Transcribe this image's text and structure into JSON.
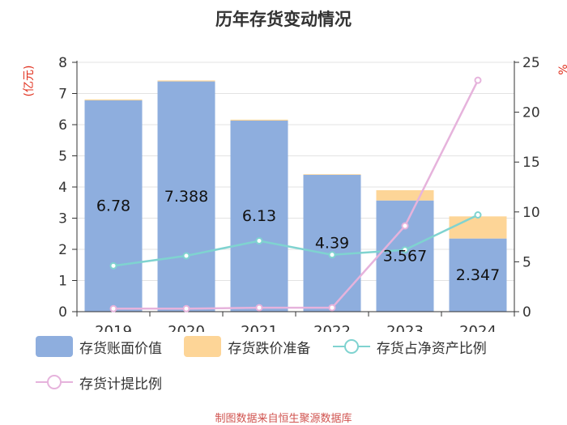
{
  "chart_data": {
    "type": "bar",
    "title": "历年存货变动情况",
    "categories": [
      "2019",
      "2020",
      "2021",
      "2022",
      "2023",
      "2024"
    ],
    "left_axis": {
      "label": "(亿元)",
      "ylim": [
        0,
        8
      ],
      "ticks": [
        0,
        1,
        2,
        3,
        4,
        5,
        6,
        7,
        8
      ]
    },
    "right_axis": {
      "label": "%",
      "ylim": [
        0,
        25
      ],
      "ticks": [
        0,
        5,
        10,
        15,
        20,
        25
      ]
    },
    "series": [
      {
        "name": "存货账面价值",
        "kind": "bar",
        "axis": "left",
        "stack": "inv",
        "color": "#8eaede",
        "values": [
          6.78,
          7.388,
          6.13,
          4.39,
          3.567,
          2.347
        ],
        "labels": [
          "6.78",
          "7.388",
          "6.13",
          "4.39",
          "3.567",
          "2.347"
        ]
      },
      {
        "name": "存货跌价准备",
        "kind": "bar",
        "axis": "left",
        "stack": "inv",
        "color": "#fdd597",
        "values": [
          0.03,
          0.03,
          0.03,
          0.02,
          0.33,
          0.71
        ]
      },
      {
        "name": "存货占净资产比例",
        "kind": "line",
        "axis": "right",
        "color": "#7fd3d0",
        "values": [
          4.6,
          5.6,
          7.1,
          5.7,
          6.2,
          9.7
        ]
      },
      {
        "name": "存货计提比例",
        "kind": "line",
        "axis": "right",
        "color": "#e6b3dc",
        "values": [
          0.3,
          0.3,
          0.4,
          0.4,
          8.6,
          23.2
        ]
      }
    ]
  },
  "source": "制图数据来自恒生聚源数据库"
}
